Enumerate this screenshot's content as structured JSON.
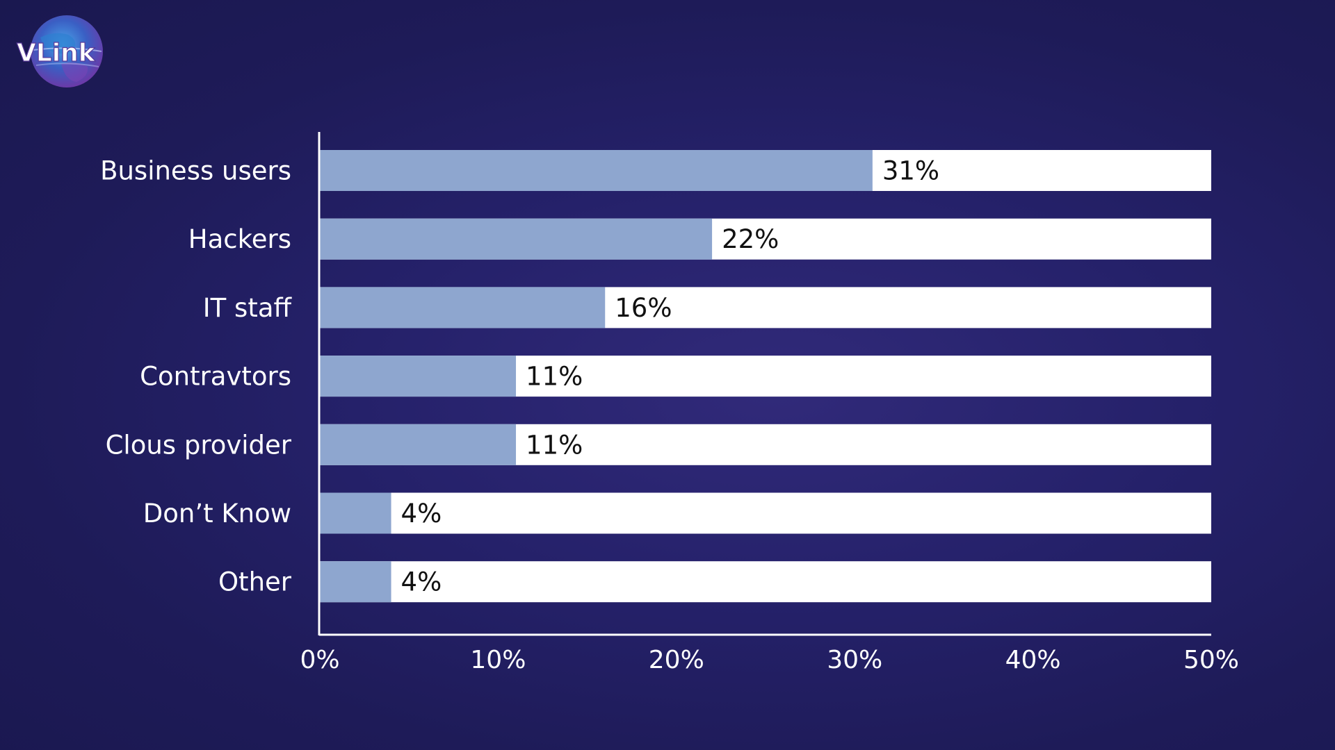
{
  "brand": {
    "logo_text": "VLink",
    "accent_color": "#8ea6cf"
  },
  "chart_data": {
    "type": "bar",
    "orientation": "horizontal",
    "categories": [
      "Business users",
      "Hackers",
      "IT staff",
      "Contravtors",
      "Clous provider",
      "Don’t Know",
      "Other"
    ],
    "values": [
      31,
      22,
      16,
      11,
      11,
      4,
      4
    ],
    "value_labels": [
      "31%",
      "22%",
      "16%",
      "11%",
      "11%",
      "4%",
      "4%"
    ],
    "xlim": [
      0,
      50
    ],
    "x_ticks": [
      0,
      10,
      20,
      30,
      40,
      50
    ],
    "x_tick_labels": [
      "0%",
      "10%",
      "20%",
      "30%",
      "40%",
      "50%"
    ],
    "bar_color": "#8ea6cf",
    "track_color": "#ffffff",
    "grid": false,
    "legend": "none",
    "title": "",
    "xlabel": "",
    "ylabel": ""
  }
}
